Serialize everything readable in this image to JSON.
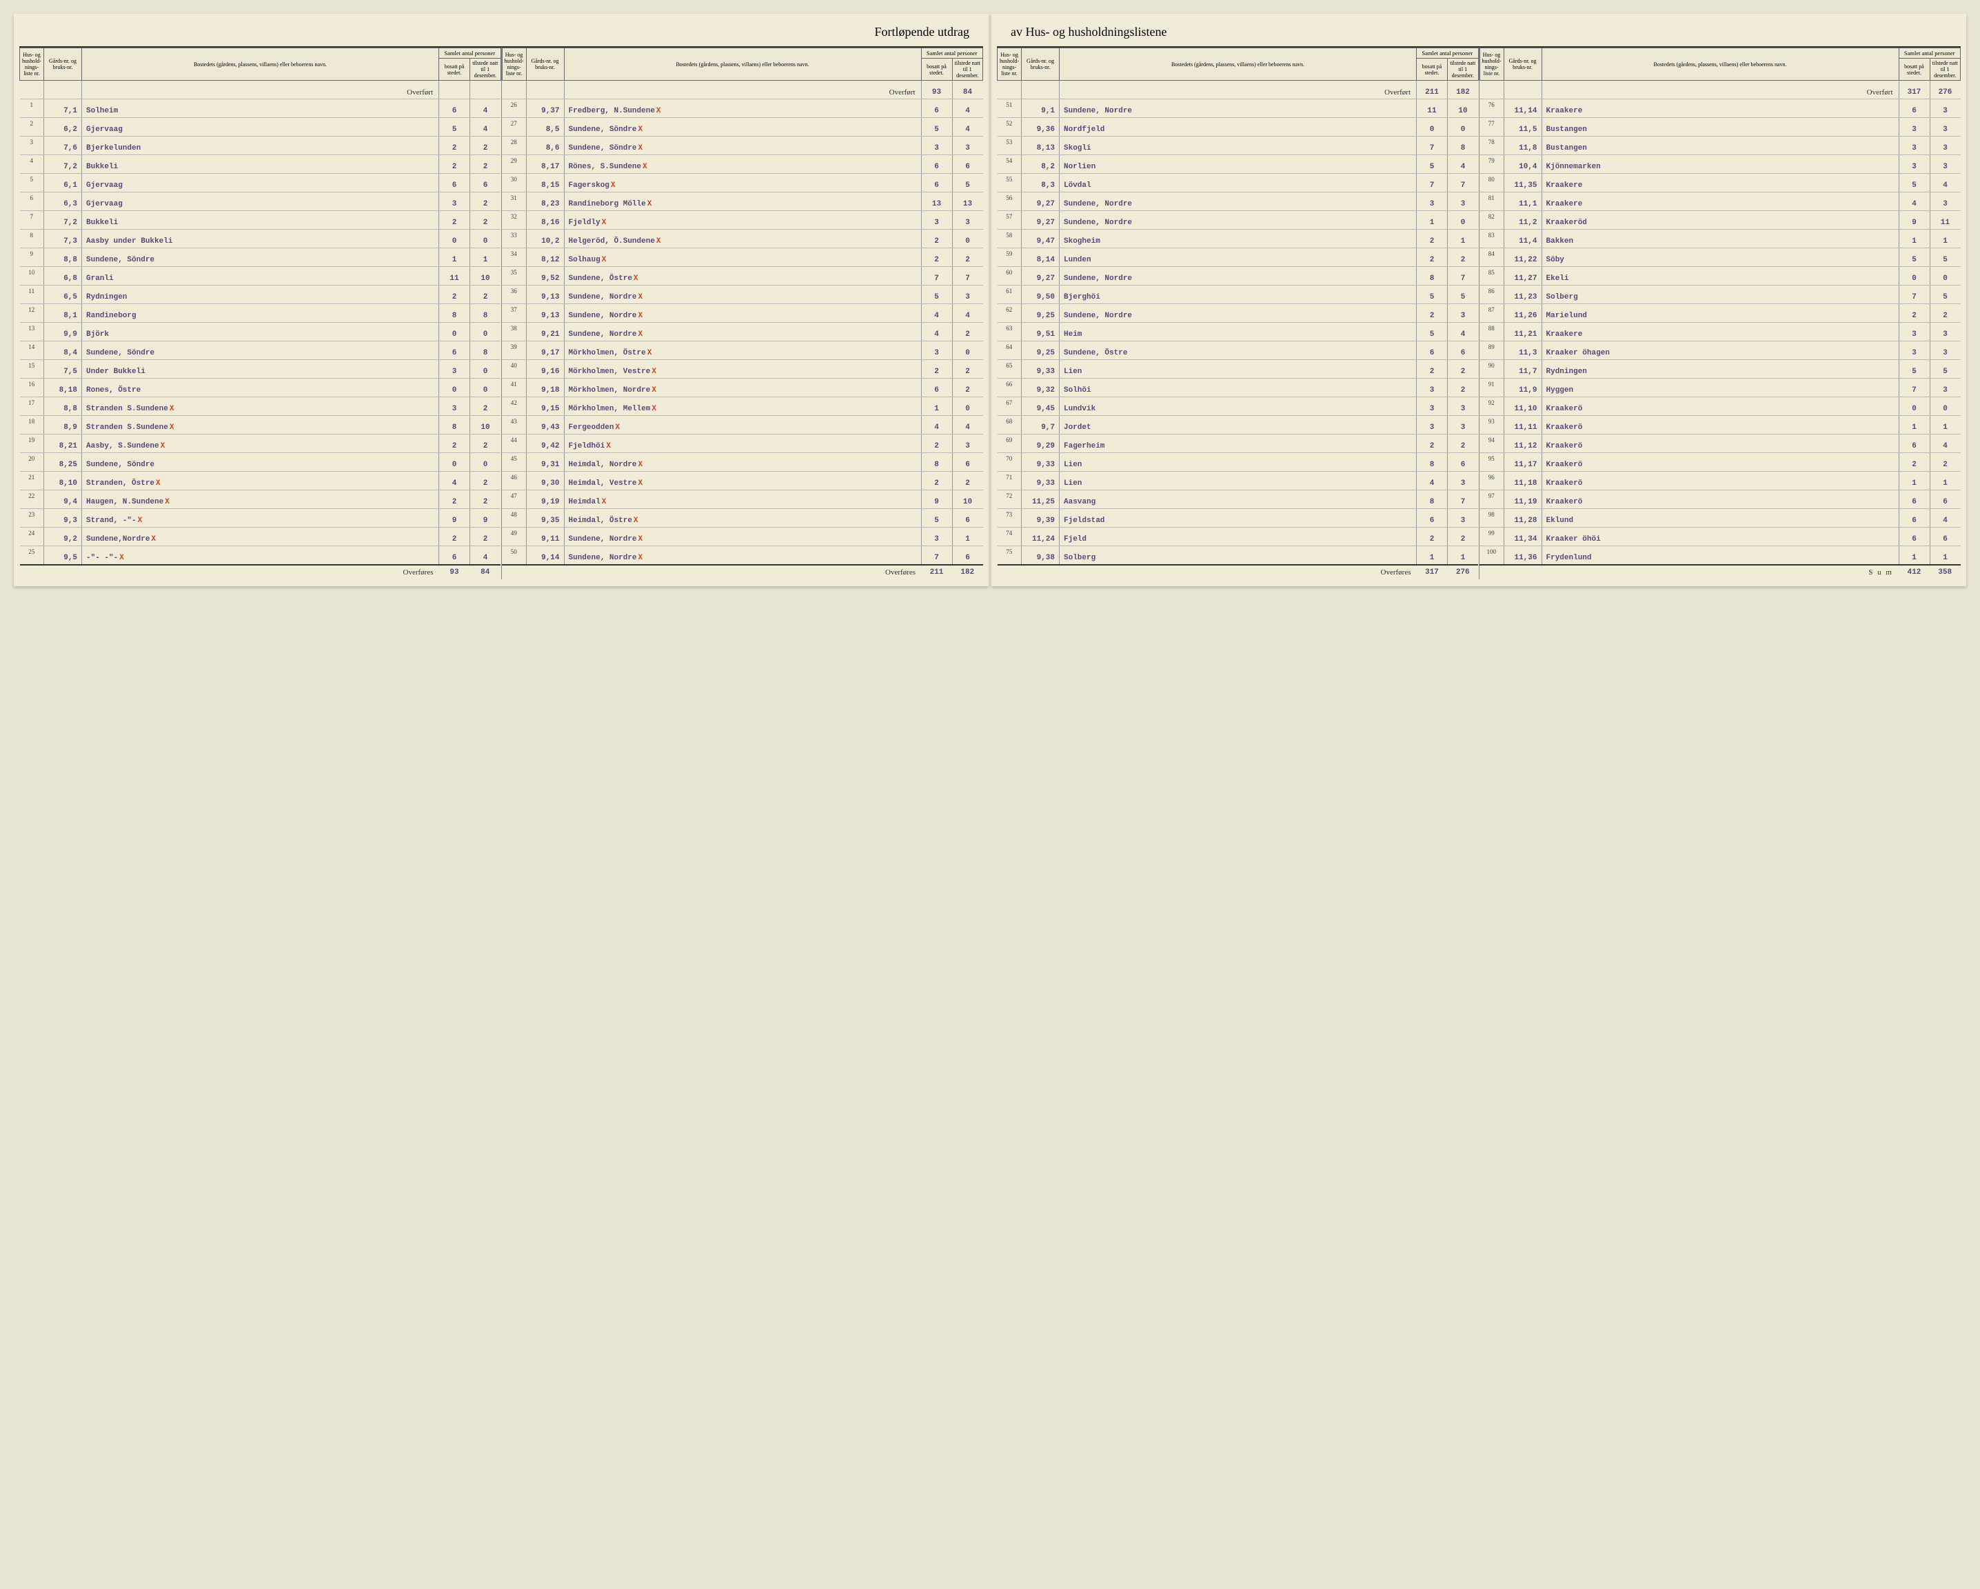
{
  "title_left": "Fortløpende utdrag",
  "title_right": "av Hus- og husholdningslistene",
  "headers": {
    "liste": "Hus- og hushold-nings-liste nr.",
    "gnr": "Gårds-nr. og bruks-nr.",
    "bosted": "Bostedets (gårdens, plassens, villaens) eller beboerens navn.",
    "samlet": "Samlet antal personer",
    "bosatt": "bosatt på stedet.",
    "tilstede": "tilstede natt til 1 desember."
  },
  "carry_label": "Overført",
  "footer_label": "Overføres",
  "sum_label": "S u m",
  "blocks": [
    {
      "carry": null,
      "rows": [
        {
          "n": "1",
          "g": "7,1",
          "name": "Solheim",
          "b": "6",
          "t": "4",
          "m": ""
        },
        {
          "n": "2",
          "g": "6,2",
          "name": "Gjervaag",
          "b": "5",
          "t": "4",
          "m": ""
        },
        {
          "n": "3",
          "g": "7,6",
          "name": "Bjerkelunden",
          "b": "2",
          "t": "2",
          "m": ""
        },
        {
          "n": "4",
          "g": "7,2",
          "name": "Bukkeli",
          "b": "2",
          "t": "2",
          "m": ""
        },
        {
          "n": "5",
          "g": "6,1",
          "name": "Gjervaag",
          "b": "6",
          "t": "6",
          "m": ""
        },
        {
          "n": "6",
          "g": "6,3",
          "name": "Gjervaag",
          "b": "3",
          "t": "2",
          "m": ""
        },
        {
          "n": "7",
          "g": "7,2",
          "name": "Bukkeli",
          "b": "2",
          "t": "2",
          "m": ""
        },
        {
          "n": "8",
          "g": "7,3",
          "name": "Aasby under Bukkeli",
          "b": "0",
          "t": "0",
          "m": ""
        },
        {
          "n": "9",
          "g": "8,8",
          "name": "Sundene, Söndre",
          "b": "1",
          "t": "1",
          "m": ""
        },
        {
          "n": "10",
          "g": "6,8",
          "name": "Granli",
          "b": "11",
          "t": "10",
          "m": ""
        },
        {
          "n": "11",
          "g": "6,5",
          "name": "Rydningen",
          "b": "2",
          "t": "2",
          "m": ""
        },
        {
          "n": "12",
          "g": "8,1",
          "name": "Randineborg",
          "b": "8",
          "t": "8",
          "m": ""
        },
        {
          "n": "13",
          "g": "9,9",
          "name": "Björk",
          "b": "0",
          "t": "0",
          "m": ""
        },
        {
          "n": "14",
          "g": "8,4",
          "name": "Sundene, Söndre",
          "b": "6",
          "t": "8",
          "m": ""
        },
        {
          "n": "15",
          "g": "7,5",
          "name": "Under Bukkeli",
          "b": "3",
          "t": "0",
          "m": ""
        },
        {
          "n": "16",
          "g": "8,18",
          "name": "Rones, Östre",
          "b": "0",
          "t": "0",
          "m": ""
        },
        {
          "n": "17",
          "g": "8,8",
          "name": "Stranden S.Sundene",
          "b": "3",
          "t": "2",
          "m": "X"
        },
        {
          "n": "18",
          "g": "8,9",
          "name": "Stranden S.Sundene",
          "b": "8",
          "t": "10",
          "m": "X"
        },
        {
          "n": "19",
          "g": "8,21",
          "name": "Aasby, S.Sundene",
          "b": "2",
          "t": "2",
          "m": "X"
        },
        {
          "n": "20",
          "g": "8,25",
          "name": "Sundene, Söndre",
          "b": "0",
          "t": "0",
          "m": ""
        },
        {
          "n": "21",
          "g": "8,10",
          "name": "Stranden, Östre",
          "b": "4",
          "t": "2",
          "m": "X"
        },
        {
          "n": "22",
          "g": "9,4",
          "name": "Haugen, N.Sundene",
          "b": "2",
          "t": "2",
          "m": "X"
        },
        {
          "n": "23",
          "g": "9,3",
          "name": "Strand,    -\"-",
          "b": "9",
          "t": "9",
          "m": "X"
        },
        {
          "n": "24",
          "g": "9,2",
          "name": "Sundene,Nordre",
          "b": "2",
          "t": "2",
          "m": "X"
        },
        {
          "n": "25",
          "g": "9,5",
          "name": "-\"-     -\"-",
          "b": "6",
          "t": "4",
          "m": "X"
        }
      ],
      "footer": {
        "b": "93",
        "t": "84"
      }
    },
    {
      "carry": {
        "b": "93",
        "t": "84"
      },
      "rows": [
        {
          "n": "26",
          "g": "9,37",
          "name": "Fredberg, N.Sundene",
          "b": "6",
          "t": "4",
          "m": "X"
        },
        {
          "n": "27",
          "g": "8,5",
          "name": "Sundene, Söndre",
          "b": "5",
          "t": "4",
          "m": "X"
        },
        {
          "n": "28",
          "g": "8,6",
          "name": "Sundene, Söndre",
          "b": "3",
          "t": "3",
          "m": "X"
        },
        {
          "n": "29",
          "g": "8,17",
          "name": "Rönes, S.Sundene",
          "b": "6",
          "t": "6",
          "m": "X"
        },
        {
          "n": "30",
          "g": "8,15",
          "name": "Fagerskog",
          "b": "6",
          "t": "5",
          "m": "X"
        },
        {
          "n": "31",
          "g": "8,23",
          "name": "Randineborg Mölle",
          "b": "13",
          "t": "13",
          "m": "X"
        },
        {
          "n": "32",
          "g": "8,16",
          "name": "Fjeldly",
          "b": "3",
          "t": "3",
          "m": "X"
        },
        {
          "n": "33",
          "g": "10,2",
          "name": "Helgeröd, Ö.Sundene",
          "b": "2",
          "t": "0",
          "m": "X"
        },
        {
          "n": "34",
          "g": "8,12",
          "name": "Solhaug",
          "b": "2",
          "t": "2",
          "m": "X"
        },
        {
          "n": "35",
          "g": "9,52",
          "name": "Sundene, Östre",
          "b": "7",
          "t": "7",
          "m": "X"
        },
        {
          "n": "36",
          "g": "9,13",
          "name": "Sundene, Nordre",
          "b": "5",
          "t": "3",
          "m": "X"
        },
        {
          "n": "37",
          "g": "9,13",
          "name": "Sundene, Nordre",
          "b": "4",
          "t": "4",
          "m": "X"
        },
        {
          "n": "38",
          "g": "9,21",
          "name": "Sundene, Nordre",
          "b": "4",
          "t": "2",
          "m": "X"
        },
        {
          "n": "39",
          "g": "9,17",
          "name": "Mörkholmen, Östre",
          "b": "3",
          "t": "0",
          "m": "X"
        },
        {
          "n": "40",
          "g": "9,16",
          "name": "Mörkholmen, Vestre",
          "b": "2",
          "t": "2",
          "m": "X"
        },
        {
          "n": "41",
          "g": "9,18",
          "name": "Mörkholmen, Nordre",
          "b": "6",
          "t": "2",
          "m": "X"
        },
        {
          "n": "42",
          "g": "9,15",
          "name": "Mörkholmen, Mellem",
          "b": "1",
          "t": "0",
          "m": "X"
        },
        {
          "n": "43",
          "g": "9,43",
          "name": "Fergeodden",
          "b": "4",
          "t": "4",
          "m": "X"
        },
        {
          "n": "44",
          "g": "9,42",
          "name": "Fjeldhöi",
          "b": "2",
          "t": "3",
          "m": "X"
        },
        {
          "n": "45",
          "g": "9,31",
          "name": "Heimdal, Nordre",
          "b": "8",
          "t": "6",
          "m": "X"
        },
        {
          "n": "46",
          "g": "9,30",
          "name": "Heimdal, Vestre",
          "b": "2",
          "t": "2",
          "m": "X"
        },
        {
          "n": "47",
          "g": "9,19",
          "name": "Heimdal",
          "b": "9",
          "t": "10",
          "m": "X"
        },
        {
          "n": "48",
          "g": "9,35",
          "name": "Heimdal, Östre",
          "b": "5",
          "t": "6",
          "m": "X"
        },
        {
          "n": "49",
          "g": "9,11",
          "name": "Sundene, Nordre",
          "b": "3",
          "t": "1",
          "m": "X"
        },
        {
          "n": "50",
          "g": "9,14",
          "name": "Sundene, Nordre",
          "b": "7",
          "t": "6",
          "m": "X"
        }
      ],
      "footer": {
        "b": "211",
        "t": "182"
      }
    },
    {
      "carry": {
        "b": "211",
        "t": "182"
      },
      "rows": [
        {
          "n": "51",
          "g": "9,1",
          "name": "Sundene, Nordre",
          "b": "11",
          "t": "10",
          "m": ""
        },
        {
          "n": "52",
          "g": "9,36",
          "name": "Nordfjeld",
          "b": "0",
          "t": "0",
          "m": ""
        },
        {
          "n": "53",
          "g": "8,13",
          "name": "Skogli",
          "b": "7",
          "t": "8",
          "m": ""
        },
        {
          "n": "54",
          "g": "8,2",
          "name": "Norlien",
          "b": "5",
          "t": "4",
          "m": ""
        },
        {
          "n": "55",
          "g": "8,3",
          "name": "Lövdal",
          "b": "7",
          "t": "7",
          "m": ""
        },
        {
          "n": "56",
          "g": "9,27",
          "name": "Sundene, Nordre",
          "b": "3",
          "t": "3",
          "m": ""
        },
        {
          "n": "57",
          "g": "9,27",
          "name": "Sundene, Nordre",
          "b": "1",
          "t": "0",
          "m": ""
        },
        {
          "n": "58",
          "g": "9,47",
          "name": "Skogheim",
          "b": "2",
          "t": "1",
          "m": ""
        },
        {
          "n": "59",
          "g": "8,14",
          "name": "Lunden",
          "b": "2",
          "t": "2",
          "m": ""
        },
        {
          "n": "60",
          "g": "9,27",
          "name": "Sundene, Nordre",
          "b": "8",
          "t": "7",
          "m": ""
        },
        {
          "n": "61",
          "g": "9,50",
          "name": "Bjerghöi",
          "b": "5",
          "t": "5",
          "m": ""
        },
        {
          "n": "62",
          "g": "9,25",
          "name": "Sundene, Nordre",
          "b": "2",
          "t": "3",
          "m": ""
        },
        {
          "n": "63",
          "g": "9,51",
          "name": "Heim",
          "b": "5",
          "t": "4",
          "m": ""
        },
        {
          "n": "64",
          "g": "9,25",
          "name": "Sundene, Östre",
          "b": "6",
          "t": "6",
          "m": ""
        },
        {
          "n": "65",
          "g": "9,33",
          "name": "Lien",
          "b": "2",
          "t": "2",
          "m": ""
        },
        {
          "n": "66",
          "g": "9,32",
          "name": "Solhöi",
          "b": "3",
          "t": "2",
          "m": ""
        },
        {
          "n": "67",
          "g": "9,45",
          "name": "Lundvik",
          "b": "3",
          "t": "3",
          "m": ""
        },
        {
          "n": "68",
          "g": "9,7",
          "name": "Jordet",
          "b": "3",
          "t": "3",
          "m": ""
        },
        {
          "n": "69",
          "g": "9,29",
          "name": "Fagerheim",
          "b": "2",
          "t": "2",
          "m": ""
        },
        {
          "n": "70",
          "g": "9,33",
          "name": "Lien",
          "b": "8",
          "t": "6",
          "m": ""
        },
        {
          "n": "71",
          "g": "9,33",
          "name": "Lien",
          "b": "4",
          "t": "3",
          "m": ""
        },
        {
          "n": "72",
          "g": "11,25",
          "name": "Aasvang",
          "b": "8",
          "t": "7",
          "m": ""
        },
        {
          "n": "73",
          "g": "9,39",
          "name": "Fjeldstad",
          "b": "6",
          "t": "3",
          "m": ""
        },
        {
          "n": "74",
          "g": "11,24",
          "name": "Fjeld",
          "b": "2",
          "t": "2",
          "m": ""
        },
        {
          "n": "75",
          "g": "9,38",
          "name": "Solberg",
          "b": "1",
          "t": "1",
          "m": ""
        }
      ],
      "footer": {
        "b": "317",
        "t": "276"
      }
    },
    {
      "carry": {
        "b": "317",
        "t": "276"
      },
      "rows": [
        {
          "n": "76",
          "g": "11,14",
          "name": "Kraakere",
          "b": "6",
          "t": "3",
          "m": ""
        },
        {
          "n": "77",
          "g": "11,5",
          "name": "Bustangen",
          "b": "3",
          "t": "3",
          "m": ""
        },
        {
          "n": "78",
          "g": "11,8",
          "name": "Bustangen",
          "b": "3",
          "t": "3",
          "m": ""
        },
        {
          "n": "79",
          "g": "10,4",
          "name": "Kjönnemarken",
          "b": "3",
          "t": "3",
          "m": ""
        },
        {
          "n": "80",
          "g": "11,35",
          "name": "Kraakere",
          "b": "5",
          "t": "4",
          "m": ""
        },
        {
          "n": "81",
          "g": "11,1",
          "name": "Kraakere",
          "b": "4",
          "t": "3",
          "m": ""
        },
        {
          "n": "82",
          "g": "11,2",
          "name": "Kraakeröd",
          "b": "9",
          "t": "11",
          "m": ""
        },
        {
          "n": "83",
          "g": "11,4",
          "name": "Bakken",
          "b": "1",
          "t": "1",
          "m": ""
        },
        {
          "n": "84",
          "g": "11,22",
          "name": "Söby",
          "b": "5",
          "t": "5",
          "m": ""
        },
        {
          "n": "85",
          "g": "11,27",
          "name": "Ekeli",
          "b": "0",
          "t": "0",
          "m": ""
        },
        {
          "n": "86",
          "g": "11,23",
          "name": "Solberg",
          "b": "7",
          "t": "5",
          "m": ""
        },
        {
          "n": "87",
          "g": "11,26",
          "name": "Marielund",
          "b": "2",
          "t": "2",
          "m": ""
        },
        {
          "n": "88",
          "g": "11,21",
          "name": "Kraakere",
          "b": "3",
          "t": "3",
          "m": ""
        },
        {
          "n": "89",
          "g": "11,3",
          "name": "Kraaker öhagen",
          "b": "3",
          "t": "3",
          "m": ""
        },
        {
          "n": "90",
          "g": "11,7",
          "name": "Rydningen",
          "b": "5",
          "t": "5",
          "m": ""
        },
        {
          "n": "91",
          "g": "11,9",
          "name": "Hyggen",
          "b": "7",
          "t": "3",
          "m": ""
        },
        {
          "n": "92",
          "g": "11,10",
          "name": "Kraakerö",
          "b": "0",
          "t": "0",
          "m": ""
        },
        {
          "n": "93",
          "g": "11,11",
          "name": "Kraakerö",
          "b": "1",
          "t": "1",
          "m": ""
        },
        {
          "n": "94",
          "g": "11,12",
          "name": "Kraakerö",
          "b": "6",
          "t": "4",
          "m": ""
        },
        {
          "n": "95",
          "g": "11,17",
          "name": "Kraakerö",
          "b": "2",
          "t": "2",
          "m": ""
        },
        {
          "n": "96",
          "g": "11,18",
          "name": "Kraakerö",
          "b": "1",
          "t": "1",
          "m": ""
        },
        {
          "n": "97",
          "g": "11,19",
          "name": "Kraakerö",
          "b": "6",
          "t": "6",
          "m": ""
        },
        {
          "n": "98",
          "g": "11,28",
          "name": "Eklund",
          "b": "6",
          "t": "4",
          "m": ""
        },
        {
          "n": "99",
          "g": "11,34",
          "name": "Kraaker öhöi",
          "b": "6",
          "t": "6",
          "m": ""
        },
        {
          "n": "100",
          "g": "11,36",
          "name": "Frydenlund",
          "b": "1",
          "t": "1",
          "m": ""
        }
      ],
      "footer": {
        "b": "412",
        "t": "358"
      },
      "is_sum": true
    }
  ]
}
